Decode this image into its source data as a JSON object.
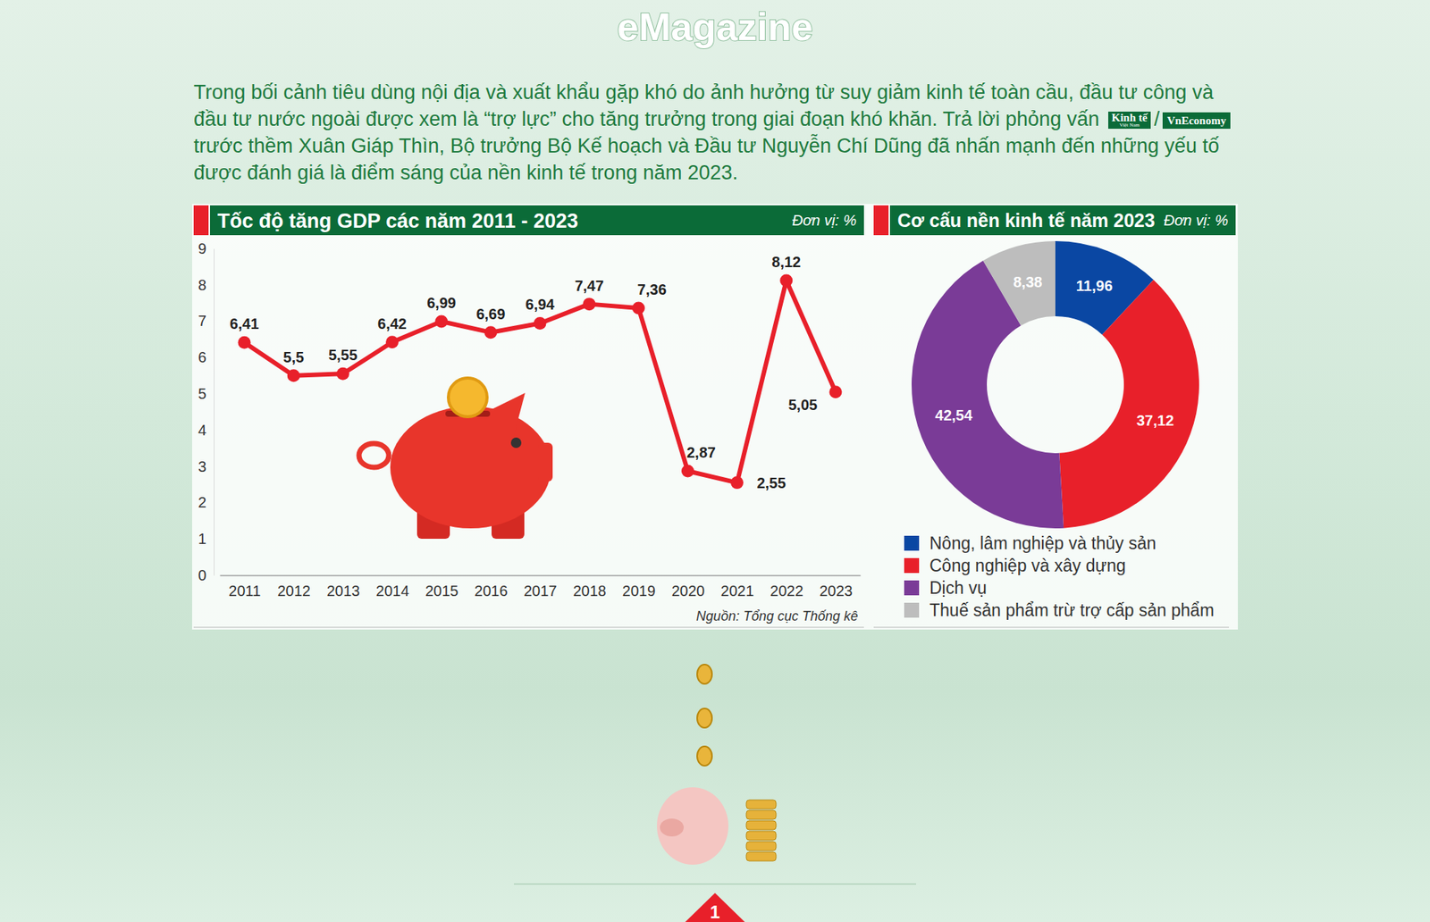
{
  "header": {
    "title": "eMagazine"
  },
  "intro": {
    "text_before": "Trong bối cảnh tiêu dùng nội địa và xuất khẩu gặp khó do ảnh hưởng từ suy giảm kinh tế toàn cầu, đầu tư công và đầu tư nước ngoài được xem là “trợ lực” cho tăng trưởng trong giai đoạn khó khăn. Trả lời phỏng vấn",
    "logo_1": "Kinh tế",
    "logo_1_sub": "Việt Nam",
    "separator": "/",
    "logo_2": "VnEconomy",
    "text_after": "trước thềm Xuân Giáp Thìn, Bộ trưởng Bộ Kế hoạch và Đầu tư Nguyễn Chí Dũng đã nhấn mạnh đến những yếu tố được đánh giá là điểm sáng của nền kinh tế trong năm 2023."
  },
  "chart_data": [
    {
      "type": "line",
      "title": "Tốc độ tăng GDP các năm 2011 - 2023",
      "unit_label": "Đơn vị: %",
      "categories": [
        "2011",
        "2012",
        "2013",
        "2014",
        "2015",
        "2016",
        "2017",
        "2018",
        "2019",
        "2020",
        "2021",
        "2022",
        "2023"
      ],
      "values": [
        6.41,
        5.5,
        5.55,
        6.42,
        6.99,
        6.69,
        6.94,
        7.47,
        7.36,
        2.87,
        2.55,
        8.12,
        5.05
      ],
      "value_labels": [
        "6,41",
        "5,5",
        "5,55",
        "6,42",
        "6,99",
        "6,69",
        "6,94",
        "7,47",
        "7,36",
        "2,87",
        "2,55",
        "8,12",
        "5,05"
      ],
      "color": "#e8202a",
      "marker": "circle",
      "data_labels": true,
      "ylim": [
        0,
        9
      ],
      "yticks": [
        0,
        1,
        2,
        3,
        4,
        5,
        6,
        7,
        8,
        9
      ],
      "source": "Nguồn: Tổng cục Thống kê"
    },
    {
      "type": "donut",
      "title": "Cơ cấu nền kinh tế năm 2023",
      "unit_label": "Đơn vị: %",
      "categories": [
        "Nông, lâm nghiệp và thủy sản",
        "Công nghiệp và xây dựng",
        "Dịch vụ",
        "Thuế sản phẩm trừ trợ cấp sản phẩm"
      ],
      "values": [
        11.96,
        37.12,
        42.54,
        8.38
      ],
      "value_labels": [
        "11,96",
        "37,12",
        "42,54",
        "8,38"
      ],
      "colors": [
        "#0a47a3",
        "#e8202a",
        "#7a3b97",
        "#bdbdbd"
      ],
      "data_labels": true,
      "legend": "bottom"
    }
  ],
  "page_number": "1"
}
